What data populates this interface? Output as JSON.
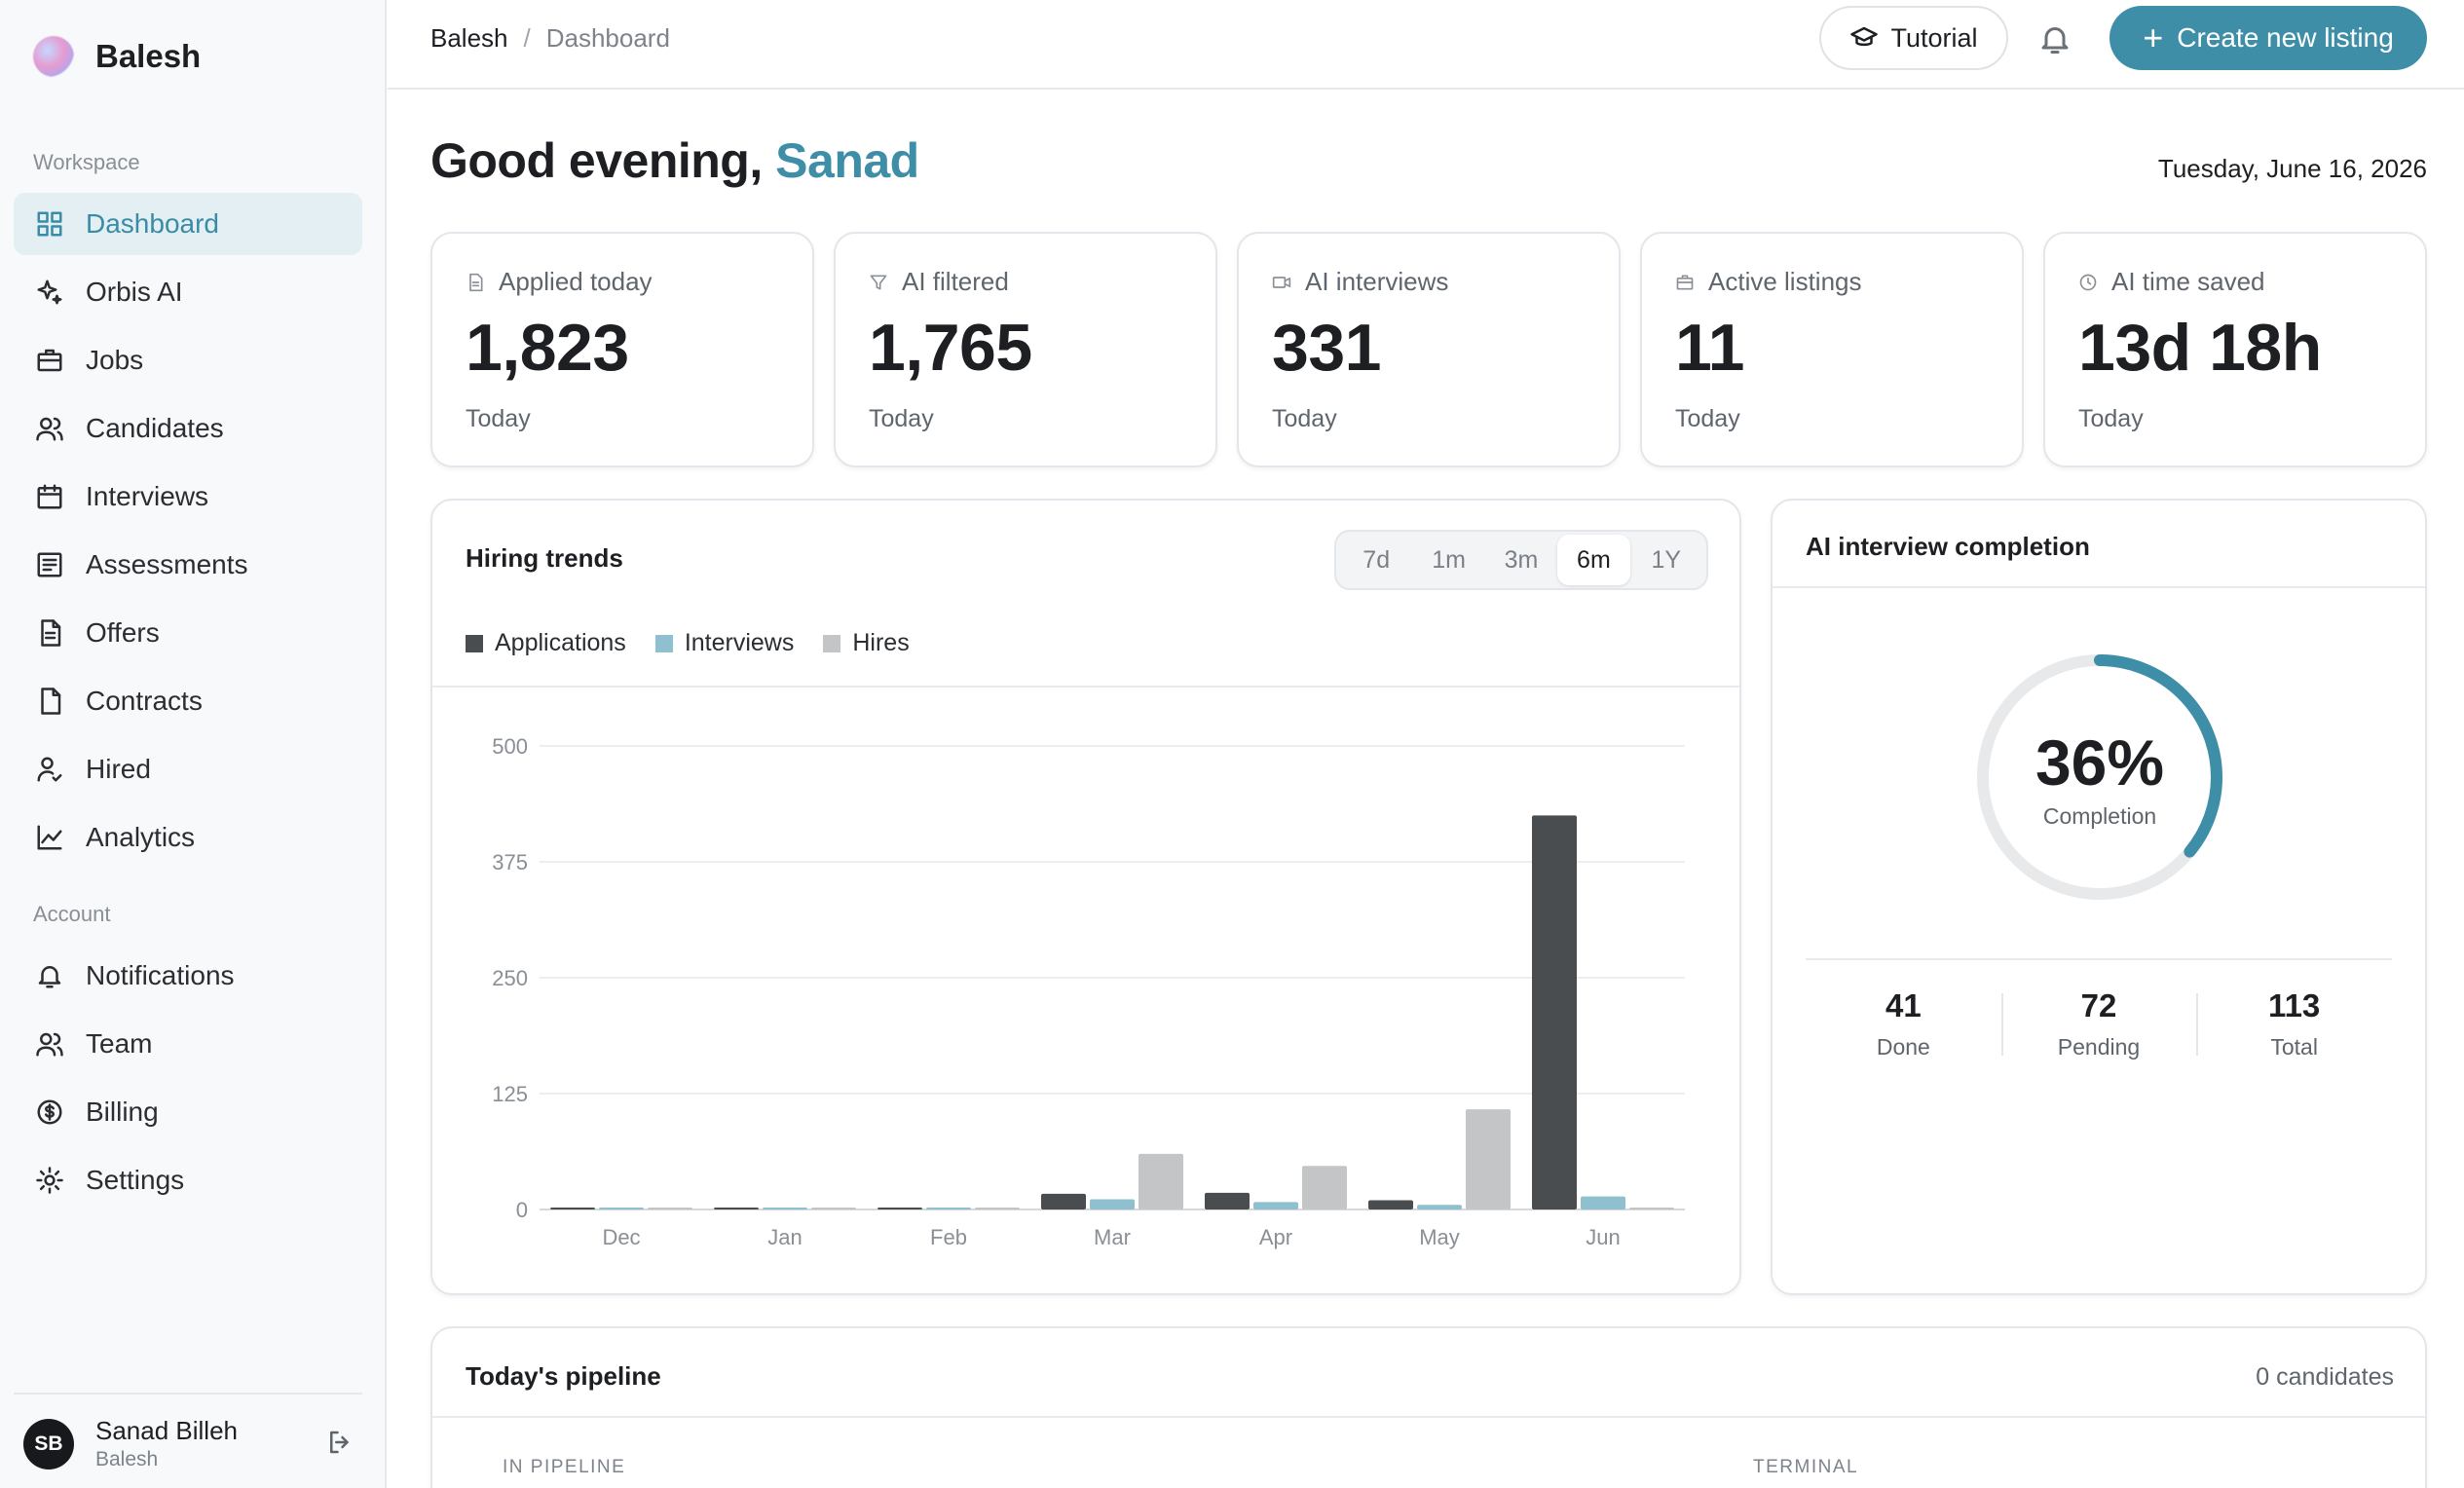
{
  "brand": {
    "name": "Balesh"
  },
  "sidebar": {
    "workspace_label": "Workspace",
    "workspace_items": [
      {
        "label": "Dashboard",
        "icon": "grid-icon",
        "active": true
      },
      {
        "label": "Orbis AI",
        "icon": "sparkle-icon"
      },
      {
        "label": "Jobs",
        "icon": "briefcase-icon"
      },
      {
        "label": "Candidates",
        "icon": "users-icon"
      },
      {
        "label": "Interviews",
        "icon": "calendar-icon"
      },
      {
        "label": "Assessments",
        "icon": "list-icon"
      },
      {
        "label": "Offers",
        "icon": "document-icon"
      },
      {
        "label": "Contracts",
        "icon": "file-icon"
      },
      {
        "label": "Hired",
        "icon": "user-check-icon"
      },
      {
        "label": "Analytics",
        "icon": "chart-line-icon"
      }
    ],
    "account_label": "Account",
    "account_items": [
      {
        "label": "Notifications",
        "icon": "bell-icon"
      },
      {
        "label": "Team",
        "icon": "users-icon"
      },
      {
        "label": "Billing",
        "icon": "dollar-circle-icon"
      },
      {
        "label": "Settings",
        "icon": "gear-icon"
      }
    ],
    "user": {
      "initials": "SB",
      "name": "Sanad Billeh",
      "org": "Balesh"
    }
  },
  "header": {
    "breadcrumb": [
      "Balesh",
      "Dashboard"
    ],
    "tutorial_label": "Tutorial",
    "create_label": "Create new listing"
  },
  "main": {
    "greeting_prefix": "Good evening,",
    "greeting_name": "Sanad",
    "date": "Tuesday, June 16, 2026",
    "stats": [
      {
        "label": "Applied today",
        "value": "1,823",
        "sub": "Today",
        "icon": "document-icon"
      },
      {
        "label": "AI filtered",
        "value": "1,765",
        "sub": "Today",
        "icon": "filter-icon"
      },
      {
        "label": "AI interviews",
        "value": "331",
        "sub": "Today",
        "icon": "video-icon"
      },
      {
        "label": "Active listings",
        "value": "11",
        "sub": "Today",
        "icon": "briefcase-icon"
      },
      {
        "label": "AI time saved",
        "value": "13d 18h",
        "sub": "Today",
        "icon": "clock-icon"
      }
    ]
  },
  "hiring_trends": {
    "title": "Hiring trends",
    "ranges": [
      "7d",
      "1m",
      "3m",
      "6m",
      "1Y"
    ],
    "active_range": "6m"
  },
  "chart_data": {
    "type": "bar",
    "title": "Hiring trends",
    "categories": [
      "Dec",
      "Jan",
      "Feb",
      "Mar",
      "Apr",
      "May",
      "Jun"
    ],
    "series": [
      {
        "name": "Applications",
        "color": "#4a4d50",
        "values": [
          1,
          1,
          1,
          17,
          18,
          10,
          425
        ]
      },
      {
        "name": "Interviews",
        "color": "#8fc0cf",
        "values": [
          1,
          1,
          1,
          11,
          8,
          5,
          14
        ]
      },
      {
        "name": "Hires",
        "color": "#c4c5c7",
        "values": [
          0,
          0,
          0,
          60,
          47,
          108,
          0
        ]
      }
    ],
    "yticks": [
      0,
      125,
      250,
      375,
      500
    ],
    "ylim": [
      0,
      500
    ],
    "grid": true,
    "legend": "top-left"
  },
  "completion": {
    "title": "AI interview completion",
    "percent": 36,
    "percent_label": "36%",
    "label": "Completion",
    "accent": "#3f8ea8",
    "done": "41",
    "done_label": "Done",
    "pending": "72",
    "pending_label": "Pending",
    "total": "113",
    "total_label": "Total"
  },
  "pipeline": {
    "title": "Today's pipeline",
    "count": "0 candidates",
    "col_in": "IN PIPELINE",
    "col_terminal": "TERMINAL"
  }
}
